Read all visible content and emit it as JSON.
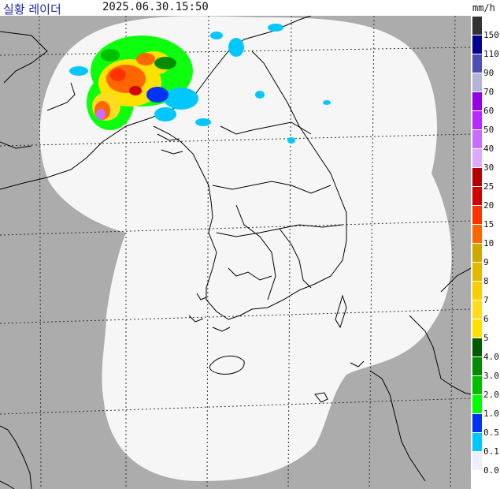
{
  "header": {
    "title": "실황 레이더",
    "timestamp": "2025.06.30.15:50",
    "unit": "mm/h"
  },
  "colors": {
    "outside_coverage": "#acacac",
    "coverage": "#f6f6f6",
    "coastline": "#000000",
    "grid": "#333333",
    "title_text": "#1f2aa8"
  },
  "legend": {
    "items": [
      {
        "label": "150",
        "color": "#333333"
      },
      {
        "label": "110",
        "color": "#000390"
      },
      {
        "label": "90",
        "color": "#4c4eb1"
      },
      {
        "label": "70",
        "color": "#b3b4de"
      },
      {
        "label": "60",
        "color": "#9300e4"
      },
      {
        "label": "50",
        "color": "#b329ff"
      },
      {
        "label": "40",
        "color": "#c96cff"
      },
      {
        "label": "30",
        "color": "#e0a9ff"
      },
      {
        "label": "25",
        "color": "#b40000"
      },
      {
        "label": "20",
        "color": "#d20000"
      },
      {
        "label": "15",
        "color": "#ff3300"
      },
      {
        "label": "10",
        "color": "#ff6600"
      },
      {
        "label": "9",
        "color": "#ccaa00"
      },
      {
        "label": "8",
        "color": "#e0b900"
      },
      {
        "label": "7",
        "color": "#f9cd00"
      },
      {
        "label": "6",
        "color": "#ffdc1f"
      },
      {
        "label": "5",
        "color": "#ffe100"
      },
      {
        "label": "4.0",
        "color": "#005a00"
      },
      {
        "label": "3.0",
        "color": "#008c00"
      },
      {
        "label": "2.0",
        "color": "#00be00"
      },
      {
        "label": "1.0",
        "color": "#00ff00"
      },
      {
        "label": "0.5",
        "color": "#0033f5"
      },
      {
        "label": "0.1",
        "color": "#00c8ff"
      },
      {
        "label": "0.0",
        "color": "#eeeeff"
      }
    ]
  }
}
